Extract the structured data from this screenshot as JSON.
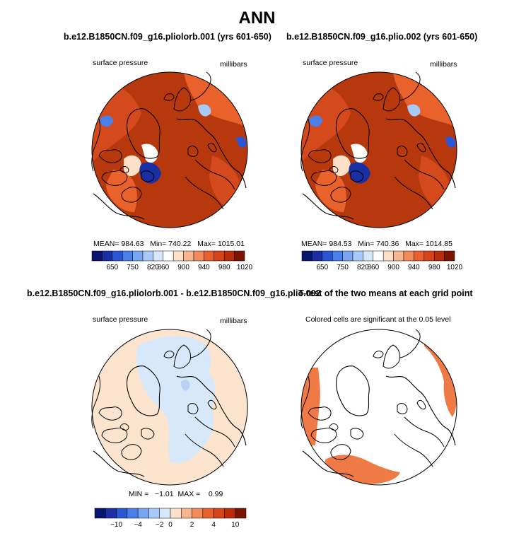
{
  "main_title": "ANN",
  "panels": {
    "p1": {
      "title": "b.e12.B1850CN.f09_g16.pliolorb.001 (yrs 601-650)",
      "left_label": "surface pressure",
      "right_label": "millibars",
      "stats": "MEAN= 984.63   Min= 740.22   Max= 1015.01"
    },
    "p2": {
      "title": "b.e12.B1850CN.f09_g16.plio.002 (yrs 601-650)",
      "left_label": "surface pressure",
      "right_label": "millibars",
      "stats": "MEAN= 984.53   Min= 740.36   Max= 1014.85"
    },
    "p3": {
      "title": "b.e12.B1850CN.f09_g16.pliolorb.001 - b.e12.B1850CN.f09_g16.plio.002",
      "left_label": "surface pressure",
      "right_label": "millibars",
      "stats": "MIN =   −1.01  MAX =    0.99"
    },
    "p4": {
      "title": "T-test of the two means at each grid point",
      "left_label": "Colored cells are significant at the 0.05 level"
    }
  },
  "colors": {
    "ocean_dark": "#b8380e",
    "ocean_mid": "#d54a1c",
    "ocean_light": "#e9622c",
    "coast": "#000000",
    "diff_pos": "#fde4cf",
    "diff_neg": "#d7e8fb",
    "diff_neg2": "#b7d2f3",
    "sig": "#ef7a45"
  },
  "chart_data": [
    {
      "type": "heatmap",
      "title": "b.e12.B1850CN.f09_g16.pliolorb.001 (yrs 601-650)",
      "variable": "surface pressure",
      "units": "millibars",
      "projection": "polar stereographic (north)",
      "mean": 984.63,
      "min": 740.22,
      "max": 1015.01,
      "colorbar": {
        "labels": [
          "650",
          "750",
          "820",
          "860",
          "900",
          "940",
          "980",
          "1020"
        ],
        "colors": [
          "#09146e",
          "#1a2fa4",
          "#2a56d6",
          "#4a7ee8",
          "#78a6f2",
          "#a9c9f8",
          "#d8e8fc",
          "#ffffff",
          "#fde0c8",
          "#f9b58f",
          "#f28a5a",
          "#e8602e",
          "#d84319",
          "#b82c0c",
          "#7c1402"
        ]
      }
    },
    {
      "type": "heatmap",
      "title": "b.e12.B1850CN.f09_g16.plio.002 (yrs 601-650)",
      "variable": "surface pressure",
      "units": "millibars",
      "projection": "polar stereographic (north)",
      "mean": 984.53,
      "min": 740.36,
      "max": 1014.85,
      "colorbar": {
        "labels": [
          "650",
          "750",
          "820",
          "860",
          "900",
          "940",
          "980",
          "1020"
        ],
        "colors": [
          "#09146e",
          "#1a2fa4",
          "#2a56d6",
          "#4a7ee8",
          "#78a6f2",
          "#a9c9f8",
          "#d8e8fc",
          "#ffffff",
          "#fde0c8",
          "#f9b58f",
          "#f28a5a",
          "#e8602e",
          "#d84319",
          "#b82c0c",
          "#7c1402"
        ]
      }
    },
    {
      "type": "heatmap",
      "title": "b.e12.B1850CN.f09_g16.pliolorb.001 - b.e12.B1850CN.f09_g16.plio.002",
      "variable": "surface pressure",
      "units": "millibars",
      "min": -1.01,
      "max": 0.99,
      "colorbar": {
        "labels": [
          "−10",
          "−4",
          "−2",
          "0",
          "2",
          "4",
          "10"
        ],
        "colors": [
          "#09146e",
          "#1a2fa4",
          "#2a56d6",
          "#4a7ee8",
          "#78a6f2",
          "#a9c9f8",
          "#d8e8fc",
          "#fde0c8",
          "#f9b58f",
          "#f28a5a",
          "#e8602e",
          "#d84319",
          "#b82c0c",
          "#7c1402"
        ]
      }
    },
    {
      "type": "heatmap",
      "title": "T-test of the two means at each grid point",
      "note": "Colored cells are significant at the 0.05 level"
    }
  ]
}
